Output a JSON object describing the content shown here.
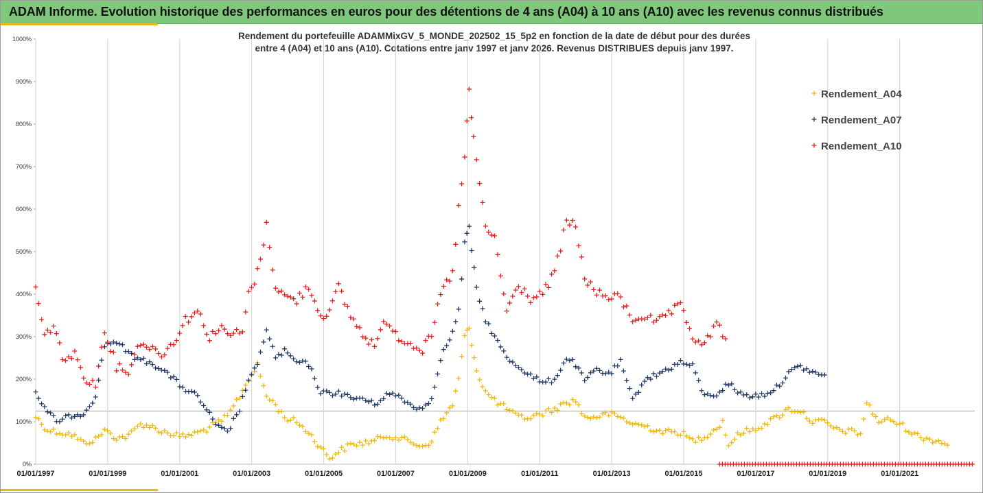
{
  "header": {
    "title": "ADAM Informe. Evolution historique des performances en euros pour des détentions de 4 ans (A04) à 10 ans (A10) avec les revenus connus distribués"
  },
  "chart_data": {
    "type": "scatter",
    "subtitle_line1": "Rendement du portefeuille ADAMMixGV_5_MONDE_202502_15_5p2 en fonction de la date de début pour des durées",
    "subtitle_line2": "entre 4 (A04) et 10 ans (A10). Cotations entre janv 1997 et janv 2026. Revenus DISTRIBUES depuis janv 1997.",
    "x_range": [
      "1997-01-01",
      "2023-02-01"
    ],
    "ylim": [
      0,
      1000
    ],
    "y_ticks": [
      "0%",
      "100%",
      "200%",
      "300%",
      "400%",
      "500%",
      "600%",
      "700%",
      "800%",
      "900%",
      "1000%"
    ],
    "x_ticks": [
      "01/01/1997",
      "01/01/1999",
      "01/01/2001",
      "01/01/2003",
      "01/01/2005",
      "01/01/2007",
      "01/01/2009",
      "01/01/2011",
      "01/01/2013",
      "01/01/2015",
      "01/01/2017",
      "01/01/2019",
      "01/01/2021"
    ],
    "reference_line_y": 125,
    "legend_position": "top-right",
    "marker": "+",
    "series": [
      {
        "name": "Rendement_A04",
        "color": "#f2b705",
        "points": [
          [
            "1997-01-01",
            112
          ],
          [
            "1997-05-01",
            80
          ],
          [
            "1997-09-01",
            75
          ],
          [
            "1998-01-01",
            70
          ],
          [
            "1998-05-01",
            50
          ],
          [
            "1998-09-01",
            58
          ],
          [
            "1998-12-01",
            80
          ],
          [
            "1999-04-01",
            62
          ],
          [
            "1999-08-01",
            66
          ],
          [
            "1999-12-01",
            95
          ],
          [
            "2000-03-01",
            90
          ],
          [
            "2000-07-01",
            78
          ],
          [
            "2000-11-01",
            70
          ],
          [
            "2001-02-01",
            65
          ],
          [
            "2001-06-01",
            72
          ],
          [
            "2001-10-01",
            82
          ],
          [
            "2002-01-01",
            95
          ],
          [
            "2002-05-01",
            112
          ],
          [
            "2002-09-01",
            160
          ],
          [
            "2002-12-01",
            200
          ],
          [
            "2003-03-01",
            232
          ],
          [
            "2003-06-01",
            160
          ],
          [
            "2003-09-01",
            140
          ],
          [
            "2003-12-01",
            110
          ],
          [
            "2004-04-01",
            100
          ],
          [
            "2004-08-01",
            75
          ],
          [
            "2004-12-01",
            40
          ],
          [
            "2005-03-01",
            15
          ],
          [
            "2005-06-01",
            30
          ],
          [
            "2005-10-01",
            45
          ],
          [
            "2006-02-01",
            50
          ],
          [
            "2006-06-01",
            55
          ],
          [
            "2006-10-01",
            68
          ],
          [
            "2007-02-01",
            62
          ],
          [
            "2007-06-01",
            52
          ],
          [
            "2007-10-01",
            42
          ],
          [
            "2008-01-01",
            55
          ],
          [
            "2008-04-01",
            100
          ],
          [
            "2008-08-01",
            140
          ],
          [
            "2008-10-01",
            200
          ],
          [
            "2008-12-01",
            300
          ],
          [
            "2009-01-15",
            320
          ],
          [
            "2009-04-01",
            220
          ],
          [
            "2009-07-01",
            170
          ],
          [
            "2009-10-01",
            150
          ],
          [
            "2010-02-01",
            130
          ],
          [
            "2010-06-01",
            110
          ],
          [
            "2010-10-01",
            110
          ],
          [
            "2011-02-01",
            120
          ],
          [
            "2011-06-01",
            130
          ],
          [
            "2011-10-01",
            145
          ],
          [
            "2012-01-01",
            150
          ],
          [
            "2012-04-01",
            110
          ],
          [
            "2012-08-01",
            112
          ],
          [
            "2012-12-01",
            118
          ],
          [
            "2013-04-01",
            110
          ],
          [
            "2013-08-01",
            95
          ],
          [
            "2013-12-01",
            90
          ],
          [
            "2014-04-01",
            80
          ],
          [
            "2014-08-01",
            75
          ],
          [
            "2014-12-01",
            75
          ],
          [
            "2015-04-01",
            55
          ],
          [
            "2015-08-01",
            65
          ],
          [
            "2015-12-01",
            85
          ],
          [
            "2016-02-01",
            100
          ],
          [
            "2016-04-01",
            45
          ],
          [
            "2016-08-01",
            75
          ],
          [
            "2016-12-01",
            80
          ],
          [
            "2017-04-01",
            95
          ],
          [
            "2017-08-01",
            110
          ],
          [
            "2017-12-01",
            130
          ],
          [
            "2018-04-01",
            125
          ],
          [
            "2018-08-01",
            100
          ],
          [
            "2018-12-01",
            100
          ],
          [
            "2019-04-01",
            80
          ],
          [
            "2019-08-01",
            78
          ],
          [
            "2019-12-01",
            72
          ],
          [
            "2020-02-01",
            145
          ],
          [
            "2020-06-01",
            100
          ],
          [
            "2020-10-01",
            105
          ],
          [
            "2021-02-01",
            90
          ],
          [
            "2021-06-01",
            70
          ],
          [
            "2021-10-01",
            60
          ],
          [
            "2022-02-01",
            55
          ],
          [
            "2022-05-01",
            45
          ]
        ]
      },
      {
        "name": "Rendement_A07",
        "color": "#1f3864",
        "points": [
          [
            "1997-01-01",
            170
          ],
          [
            "1997-05-01",
            120
          ],
          [
            "1997-09-01",
            100
          ],
          [
            "1998-01-01",
            115
          ],
          [
            "1998-05-01",
            120
          ],
          [
            "1998-09-01",
            160
          ],
          [
            "1998-12-01",
            280
          ],
          [
            "1999-04-01",
            290
          ],
          [
            "1999-08-01",
            260
          ],
          [
            "1999-12-01",
            245
          ],
          [
            "2000-03-01",
            240
          ],
          [
            "2000-07-01",
            225
          ],
          [
            "2000-11-01",
            200
          ],
          [
            "2001-02-01",
            180
          ],
          [
            "2001-06-01",
            165
          ],
          [
            "2001-10-01",
            130
          ],
          [
            "2002-01-01",
            90
          ],
          [
            "2002-05-01",
            75
          ],
          [
            "2002-09-01",
            130
          ],
          [
            "2002-12-01",
            200
          ],
          [
            "2003-03-01",
            230
          ],
          [
            "2003-06-01",
            320
          ],
          [
            "2003-09-01",
            250
          ],
          [
            "2003-12-01",
            265
          ],
          [
            "2004-04-01",
            240
          ],
          [
            "2004-08-01",
            235
          ],
          [
            "2004-12-01",
            170
          ],
          [
            "2005-03-01",
            165
          ],
          [
            "2005-06-01",
            170
          ],
          [
            "2005-10-01",
            155
          ],
          [
            "2006-02-01",
            155
          ],
          [
            "2006-06-01",
            140
          ],
          [
            "2006-10-01",
            165
          ],
          [
            "2007-02-01",
            160
          ],
          [
            "2007-06-01",
            140
          ],
          [
            "2007-10-01",
            130
          ],
          [
            "2008-01-01",
            155
          ],
          [
            "2008-04-01",
            250
          ],
          [
            "2008-08-01",
            310
          ],
          [
            "2008-10-01",
            360
          ],
          [
            "2008-12-01",
            520
          ],
          [
            "2009-01-15",
            555
          ],
          [
            "2009-04-01",
            410
          ],
          [
            "2009-07-01",
            340
          ],
          [
            "2009-10-01",
            300
          ],
          [
            "2010-02-01",
            250
          ],
          [
            "2010-06-01",
            230
          ],
          [
            "2010-10-01",
            210
          ],
          [
            "2011-02-01",
            190
          ],
          [
            "2011-06-01",
            200
          ],
          [
            "2011-10-01",
            250
          ],
          [
            "2012-01-01",
            235
          ],
          [
            "2012-04-01",
            195
          ],
          [
            "2012-08-01",
            225
          ],
          [
            "2012-12-01",
            210
          ],
          [
            "2013-04-01",
            240
          ],
          [
            "2013-08-01",
            150
          ],
          [
            "2013-12-01",
            200
          ],
          [
            "2014-04-01",
            210
          ],
          [
            "2014-08-01",
            225
          ],
          [
            "2014-12-01",
            240
          ],
          [
            "2015-04-01",
            230
          ],
          [
            "2015-08-01",
            160
          ],
          [
            "2015-12-01",
            165
          ],
          [
            "2016-04-01",
            190
          ],
          [
            "2016-08-01",
            165
          ],
          [
            "2016-12-01",
            160
          ],
          [
            "2017-04-01",
            165
          ],
          [
            "2017-08-01",
            180
          ],
          [
            "2017-12-01",
            215
          ],
          [
            "2018-04-01",
            230
          ],
          [
            "2018-08-01",
            215
          ],
          [
            "2018-12-01",
            210
          ]
        ]
      },
      {
        "name": "Rendement_A10",
        "color": "#e81e1e",
        "points": [
          [
            "1997-01-01",
            415
          ],
          [
            "1997-04-01",
            300
          ],
          [
            "1997-07-01",
            330
          ],
          [
            "1997-10-01",
            250
          ],
          [
            "1998-02-01",
            255
          ],
          [
            "1998-06-01",
            200
          ],
          [
            "1998-09-01",
            185
          ],
          [
            "1998-12-01",
            320
          ],
          [
            "1999-04-01",
            230
          ],
          [
            "1999-08-01",
            220
          ],
          [
            "1999-12-01",
            290
          ],
          [
            "2000-04-01",
            270
          ],
          [
            "2000-08-01",
            260
          ],
          [
            "2000-12-01",
            300
          ],
          [
            "2001-03-01",
            340
          ],
          [
            "2001-07-01",
            360
          ],
          [
            "2001-11-01",
            300
          ],
          [
            "2002-02-01",
            320
          ],
          [
            "2002-06-01",
            305
          ],
          [
            "2002-10-01",
            310
          ],
          [
            "2002-12-01",
            400
          ],
          [
            "2003-03-01",
            450
          ],
          [
            "2003-06-01",
            560
          ],
          [
            "2003-09-01",
            420
          ],
          [
            "2003-12-01",
            395
          ],
          [
            "2004-04-01",
            385
          ],
          [
            "2004-08-01",
            420
          ],
          [
            "2004-12-01",
            350
          ],
          [
            "2005-03-01",
            360
          ],
          [
            "2005-06-01",
            415
          ],
          [
            "2005-10-01",
            350
          ],
          [
            "2006-02-01",
            305
          ],
          [
            "2006-06-01",
            280
          ],
          [
            "2006-10-01",
            340
          ],
          [
            "2007-02-01",
            300
          ],
          [
            "2007-06-01",
            285
          ],
          [
            "2007-10-01",
            270
          ],
          [
            "2008-01-01",
            300
          ],
          [
            "2008-04-01",
            400
          ],
          [
            "2008-08-01",
            450
          ],
          [
            "2008-10-01",
            600
          ],
          [
            "2008-12-01",
            720
          ],
          [
            "2009-01-15",
            880
          ],
          [
            "2009-03-01",
            760
          ],
          [
            "2009-05-01",
            660
          ],
          [
            "2009-07-01",
            560
          ],
          [
            "2009-10-01",
            530
          ],
          [
            "2010-02-01",
            360
          ],
          [
            "2010-06-01",
            420
          ],
          [
            "2010-10-01",
            390
          ],
          [
            "2011-02-01",
            400
          ],
          [
            "2011-06-01",
            450
          ],
          [
            "2011-10-01",
            570
          ],
          [
            "2012-01-01",
            560
          ],
          [
            "2012-04-01",
            440
          ],
          [
            "2012-08-01",
            400
          ],
          [
            "2012-12-01",
            395
          ],
          [
            "2013-04-01",
            390
          ],
          [
            "2013-08-01",
            340
          ],
          [
            "2013-12-01",
            350
          ],
          [
            "2014-04-01",
            330
          ],
          [
            "2014-08-01",
            355
          ],
          [
            "2014-12-01",
            370
          ],
          [
            "2015-04-01",
            300
          ],
          [
            "2015-08-01",
            280
          ],
          [
            "2015-12-01",
            330
          ],
          [
            "2016-03-01",
            295
          ]
        ]
      }
    ],
    "zero_band": {
      "name": "Rendement_A10",
      "x_range": [
        "2016-01-01",
        "2023-02-01"
      ],
      "value": 0
    }
  }
}
